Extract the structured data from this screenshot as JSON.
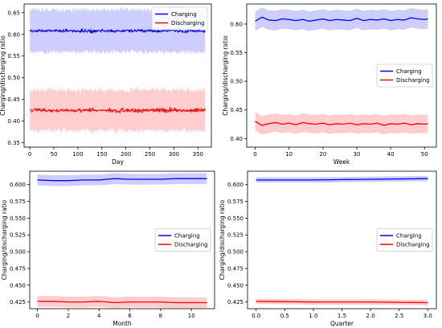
{
  "chart_data": [
    {
      "type": "line",
      "xlabel": "Day",
      "ylabel": "Charging/discharging ratio",
      "xlim": [
        -12,
        378
      ],
      "ylim": [
        0.34,
        0.67
      ],
      "xticks": [
        0,
        50,
        100,
        150,
        200,
        250,
        300,
        350
      ],
      "yticks": [
        0.35,
        0.4,
        0.45,
        0.5,
        0.55,
        0.6,
        0.65
      ],
      "xdecimals": 0,
      "ydecimals": 2,
      "legend": "top-right",
      "noisy": true,
      "x_start": 0,
      "x_end": 365,
      "series": [
        {
          "name": "Charging",
          "color": "#0000ff",
          "band_color": "#c8c8ff",
          "mean": 0.608,
          "band_half": 0.049,
          "noise": 0.004
        },
        {
          "name": "Discharging",
          "color": "#ff0000",
          "band_color": "#ffc8c8",
          "mean": 0.425,
          "band_half": 0.047,
          "noise": 0.005
        }
      ]
    },
    {
      "type": "line",
      "xlabel": "Week",
      "ylabel": "Charging/discharging ratio",
      "xlim": [
        -2.5,
        53.5
      ],
      "ylim": [
        0.385,
        0.635
      ],
      "xticks": [
        0,
        10,
        20,
        30,
        40,
        50
      ],
      "yticks": [
        0.4,
        0.45,
        0.5,
        0.55,
        0.6
      ],
      "xdecimals": 0,
      "ydecimals": 2,
      "legend": "center-right",
      "x": [
        0,
        2,
        4,
        6,
        8,
        10,
        12,
        14,
        16,
        18,
        20,
        22,
        24,
        26,
        28,
        30,
        32,
        34,
        36,
        38,
        40,
        42,
        44,
        46,
        48,
        50,
        51
      ],
      "series": [
        {
          "name": "Charging",
          "color": "#0000ff",
          "band_color": "#c8c8ff",
          "band_half": 0.017,
          "values": [
            0.605,
            0.612,
            0.607,
            0.606,
            0.609,
            0.608,
            0.606,
            0.608,
            0.605,
            0.607,
            0.609,
            0.606,
            0.608,
            0.607,
            0.606,
            0.61,
            0.606,
            0.608,
            0.607,
            0.609,
            0.606,
            0.608,
            0.607,
            0.611,
            0.609,
            0.608,
            0.609
          ]
        },
        {
          "name": "Discharging",
          "color": "#ff0000",
          "band_color": "#ffc8c8",
          "band_half": 0.016,
          "values": [
            0.43,
            0.423,
            0.426,
            0.428,
            0.425,
            0.427,
            0.424,
            0.428,
            0.426,
            0.425,
            0.427,
            0.424,
            0.426,
            0.425,
            0.427,
            0.424,
            0.426,
            0.425,
            0.427,
            0.423,
            0.426,
            0.425,
            0.427,
            0.424,
            0.426,
            0.425,
            0.426
          ]
        }
      ]
    },
    {
      "type": "line",
      "xlabel": "Month",
      "ylabel": "Charging/discharging ratio",
      "xlim": [
        -0.5,
        11.5
      ],
      "ylim": [
        0.415,
        0.62
      ],
      "xticks": [
        0,
        2,
        4,
        6,
        8,
        10
      ],
      "yticks": [
        0.425,
        0.45,
        0.475,
        0.5,
        0.525,
        0.55,
        0.575,
        0.6
      ],
      "xdecimals": 0,
      "ydecimals": 3,
      "legend": "center-right",
      "x": [
        0,
        1,
        2,
        3,
        4,
        5,
        6,
        7,
        8,
        9,
        10,
        11
      ],
      "series": [
        {
          "name": "Charging",
          "color": "#0000ff",
          "band_color": "#c8c8ff",
          "band_half": 0.008,
          "values": [
            0.607,
            0.606,
            0.606,
            0.607,
            0.607,
            0.609,
            0.608,
            0.608,
            0.608,
            0.609,
            0.609,
            0.609
          ]
        },
        {
          "name": "Discharging",
          "color": "#ff0000",
          "band_color": "#ffc8c8",
          "band_half": 0.008,
          "values": [
            0.426,
            0.426,
            0.425,
            0.425,
            0.426,
            0.424,
            0.425,
            0.425,
            0.425,
            0.424,
            0.424,
            0.424
          ]
        }
      ]
    },
    {
      "type": "line",
      "xlabel": "Quarter",
      "ylabel": "Charging/discharging ratio",
      "xlim": [
        -0.15,
        3.15
      ],
      "ylim": [
        0.415,
        0.62
      ],
      "xticks": [
        0.0,
        0.5,
        1.0,
        1.5,
        2.0,
        2.5,
        3.0
      ],
      "yticks": [
        0.425,
        0.45,
        0.475,
        0.5,
        0.525,
        0.55,
        0.575,
        0.6
      ],
      "xdecimals": 1,
      "ydecimals": 3,
      "legend": "center-right",
      "x": [
        0,
        1,
        2,
        3
      ],
      "series": [
        {
          "name": "Charging",
          "color": "#0000ff",
          "band_color": "#c8c8ff",
          "band_half": 0.004,
          "values": [
            0.607,
            0.607,
            0.608,
            0.609
          ]
        },
        {
          "name": "Discharging",
          "color": "#ff0000",
          "band_color": "#ffc8c8",
          "band_half": 0.004,
          "values": [
            0.426,
            0.425,
            0.425,
            0.424
          ]
        }
      ]
    }
  ]
}
